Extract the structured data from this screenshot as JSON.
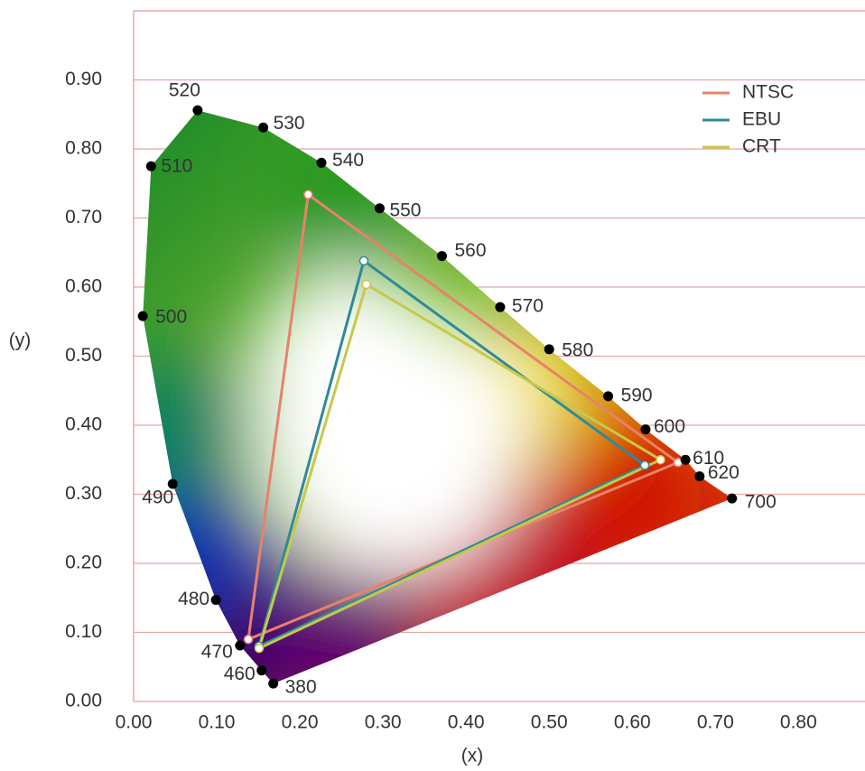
{
  "chart_data": {
    "type": "chromaticity",
    "xlabel": "(x)",
    "ylabel": "(y)",
    "xlim": [
      0,
      0.88
    ],
    "ylim": [
      0,
      1.0
    ],
    "xticks": [
      {
        "value": 0,
        "label": "0.00"
      },
      {
        "value": 0.1,
        "label": "0.10"
      },
      {
        "value": 0.2,
        "label": "0.20"
      },
      {
        "value": 0.3,
        "label": "0.30"
      },
      {
        "value": 0.4,
        "label": "0.40"
      },
      {
        "value": 0.5,
        "label": "0.50"
      },
      {
        "value": 0.6,
        "label": "0.60"
      },
      {
        "value": 0.7,
        "label": "0.70"
      },
      {
        "value": 0.8,
        "label": "0.80"
      }
    ],
    "yticks": [
      {
        "value": 0,
        "label": "0.00"
      },
      {
        "value": 0.1,
        "label": "0.10"
      },
      {
        "value": 0.2,
        "label": "0.20"
      },
      {
        "value": 0.3,
        "label": "0.30"
      },
      {
        "value": 0.4,
        "label": "0.40"
      },
      {
        "value": 0.5,
        "label": "0.50"
      },
      {
        "value": 0.6,
        "label": "0.60"
      },
      {
        "value": 0.7,
        "label": "0.70"
      },
      {
        "value": 0.8,
        "label": "0.80"
      },
      {
        "value": 0.9,
        "label": "0.90"
      }
    ],
    "grid": "y",
    "grid_color": "#e8a8a8",
    "legend": "upper right",
    "spectral_locus": {
      "wavelengths": [
        380,
        460,
        470,
        480,
        490,
        500,
        510,
        520,
        530,
        540,
        550,
        560,
        570,
        580,
        590,
        600,
        610,
        620,
        700
      ],
      "x": [
        0.168,
        0.154,
        0.128,
        0.099,
        0.047,
        0.011,
        0.021,
        0.077,
        0.156,
        0.226,
        0.296,
        0.371,
        0.441,
        0.5,
        0.571,
        0.616,
        0.664,
        0.681,
        0.72
      ],
      "y": [
        0.026,
        0.045,
        0.081,
        0.147,
        0.315,
        0.558,
        0.775,
        0.856,
        0.831,
        0.78,
        0.714,
        0.645,
        0.571,
        0.51,
        0.442,
        0.394,
        0.35,
        0.326,
        0.294
      ]
    },
    "series": [
      {
        "name": "NTSC",
        "color": "#e8826a",
        "x": [
          0.21,
          0.655,
          0.138
        ],
        "y": [
          0.734,
          0.346,
          0.09
        ]
      },
      {
        "name": "EBU",
        "color": "#2f8a9a",
        "x": [
          0.277,
          0.615,
          0.151
        ],
        "y": [
          0.638,
          0.342,
          0.08
        ]
      },
      {
        "name": "CRT",
        "color": "#c8c84a",
        "x": [
          0.28,
          0.634,
          0.151
        ],
        "y": [
          0.604,
          0.35,
          0.077
        ]
      }
    ]
  }
}
